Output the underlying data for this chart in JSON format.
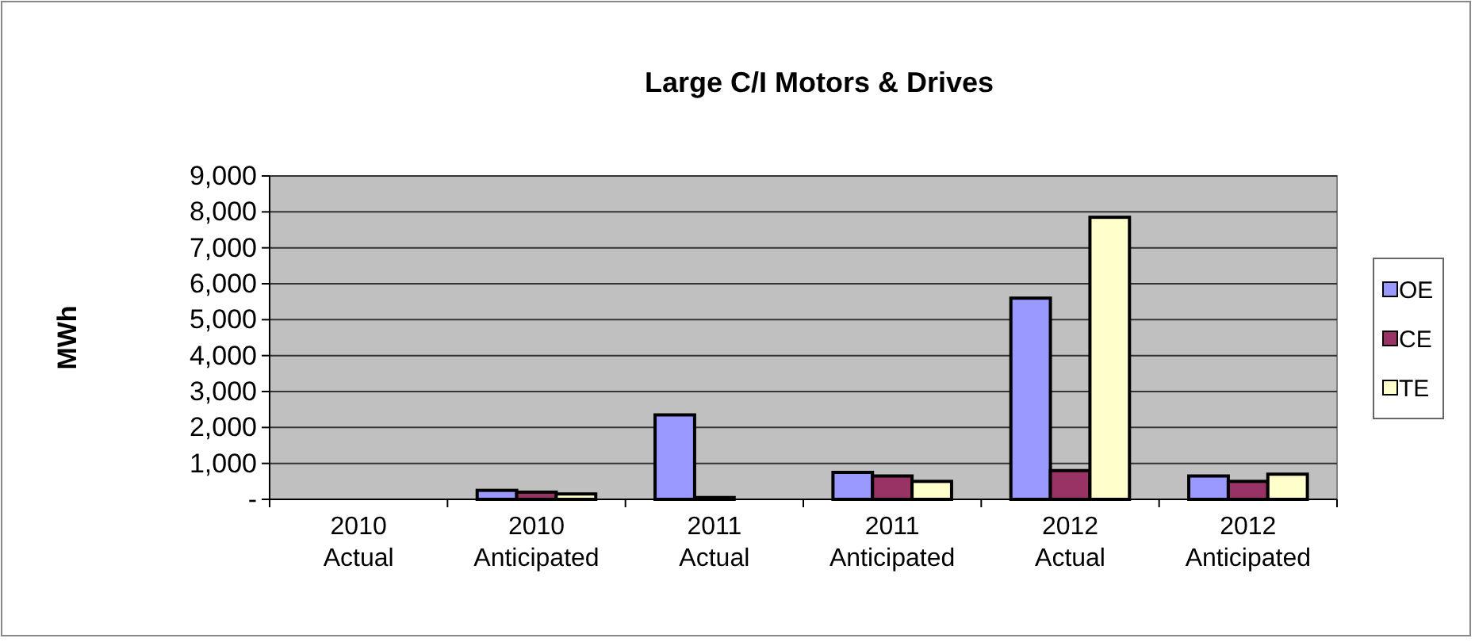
{
  "chart_data": {
    "type": "bar",
    "title": "Large C/I Motors & Drives",
    "ylabel": "MWh",
    "categories": [
      "2010 Actual",
      "2010 Anticipated",
      "2011 Actual",
      "2011 Anticipated",
      "2012 Actual",
      "2012 Anticipated"
    ],
    "series": [
      {
        "name": "OE",
        "color": "#9999ff",
        "values": [
          0,
          250,
          2350,
          750,
          5600,
          650
        ]
      },
      {
        "name": "CE",
        "color": "#993366",
        "values": [
          0,
          200,
          50,
          650,
          800,
          500
        ]
      },
      {
        "name": "TE",
        "color": "#ffffcc",
        "values": [
          0,
          150,
          0,
          500,
          7850,
          700
        ]
      }
    ],
    "ylim": [
      0,
      9000
    ],
    "yticks": [
      {
        "value": 0,
        "label": "-"
      },
      {
        "value": 1000,
        "label": "1,000"
      },
      {
        "value": 2000,
        "label": "2,000"
      },
      {
        "value": 3000,
        "label": "3,000"
      },
      {
        "value": 4000,
        "label": "4,000"
      },
      {
        "value": 5000,
        "label": "5,000"
      },
      {
        "value": 6000,
        "label": "6,000"
      },
      {
        "value": 7000,
        "label": "7,000"
      },
      {
        "value": 8000,
        "label": "8,000"
      },
      {
        "value": 9000,
        "label": "9,000"
      }
    ],
    "grid": "y",
    "legend": "right"
  }
}
